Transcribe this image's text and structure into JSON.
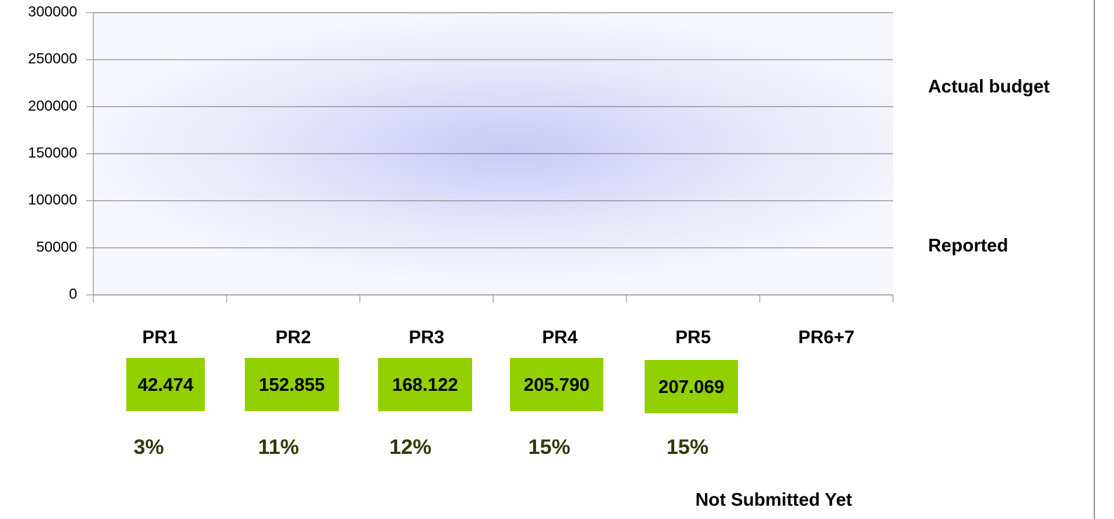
{
  "chart_data": {
    "type": "bar",
    "categories": [
      "PR1",
      "PR2",
      "PR3",
      "PR4",
      "PR5",
      "PR6+7"
    ],
    "ylim": [
      0,
      300000
    ],
    "yticks": [
      0,
      50000,
      100000,
      150000,
      200000,
      250000,
      300000
    ],
    "grid": true,
    "side_labels": [
      "Actual budget",
      "Reported"
    ],
    "reported": [
      "42.474",
      "152.855",
      "168.122",
      "205.790",
      "207.069"
    ],
    "box_color": "#92d000",
    "percent": [
      "3%",
      "11%",
      "12%",
      "15%",
      "15%"
    ],
    "percent_color": "#2d3a0a",
    "note": "Not Submitted Yet",
    "note_color": "#1f6fbf"
  }
}
